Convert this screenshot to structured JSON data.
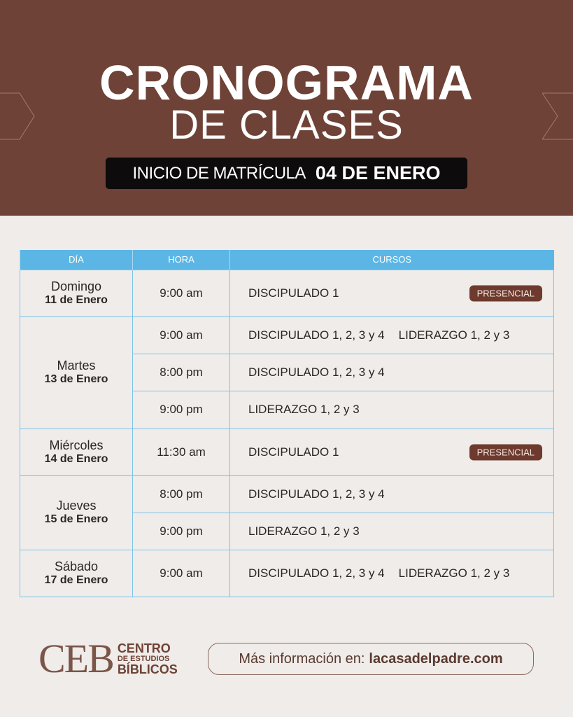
{
  "header": {
    "title": "CRONOGRAMA",
    "subtitle": "DE CLASES",
    "enroll_label": "INICIO DE MATRÍCULA",
    "enroll_date": "04 DE ENERO"
  },
  "table": {
    "columns": [
      "DÍA",
      "HORA",
      "CURSOS"
    ],
    "days": [
      {
        "day": "Domingo",
        "date": "11 de Enero",
        "rows": [
          {
            "time": "9:00 am",
            "courses": [
              "DISCIPULADO 1"
            ],
            "badge": "PRESENCIAL"
          }
        ]
      },
      {
        "day": "Martes",
        "date": "13 de Enero",
        "rows": [
          {
            "time": "9:00 am",
            "courses": [
              "DISCIPULADO 1, 2, 3 y 4",
              "LIDERAZGO 1, 2 y 3"
            ]
          },
          {
            "time": "8:00 pm",
            "courses": [
              "DISCIPULADO 1, 2, 3 y 4"
            ]
          },
          {
            "time": "9:00 pm",
            "courses": [
              "LIDERAZGO 1, 2 y 3"
            ]
          }
        ]
      },
      {
        "day": "Miércoles",
        "date": "14 de Enero",
        "rows": [
          {
            "time": "11:30 am",
            "courses": [
              "DISCIPULADO 1"
            ],
            "badge": "PRESENCIAL"
          }
        ]
      },
      {
        "day": "Jueves",
        "date": "15 de Enero",
        "rows": [
          {
            "time": "8:00 pm",
            "courses": [
              "DISCIPULADO 1, 2, 3 y 4"
            ]
          },
          {
            "time": "9:00 pm",
            "courses": [
              "LIDERAZGO 1, 2 y 3"
            ]
          }
        ]
      },
      {
        "day": "Sábado",
        "date": "17 de Enero",
        "rows": [
          {
            "time": "9:00 am",
            "courses": [
              "DISCIPULADO 1, 2, 3 y 4",
              "LIDERAZGO 1, 2 y 3"
            ]
          }
        ]
      }
    ]
  },
  "footer": {
    "logo_mark": "CEB",
    "logo_line1": "CENTRO",
    "logo_line2": "DE ESTUDIOS",
    "logo_line3": "BÍBLICOS",
    "info_label": "Más información en:",
    "info_url": "lacasadelpadre.com"
  },
  "colors": {
    "header_bg": "#6e4236",
    "table_header": "#5bb6e5",
    "badge": "#6e3a2e"
  }
}
